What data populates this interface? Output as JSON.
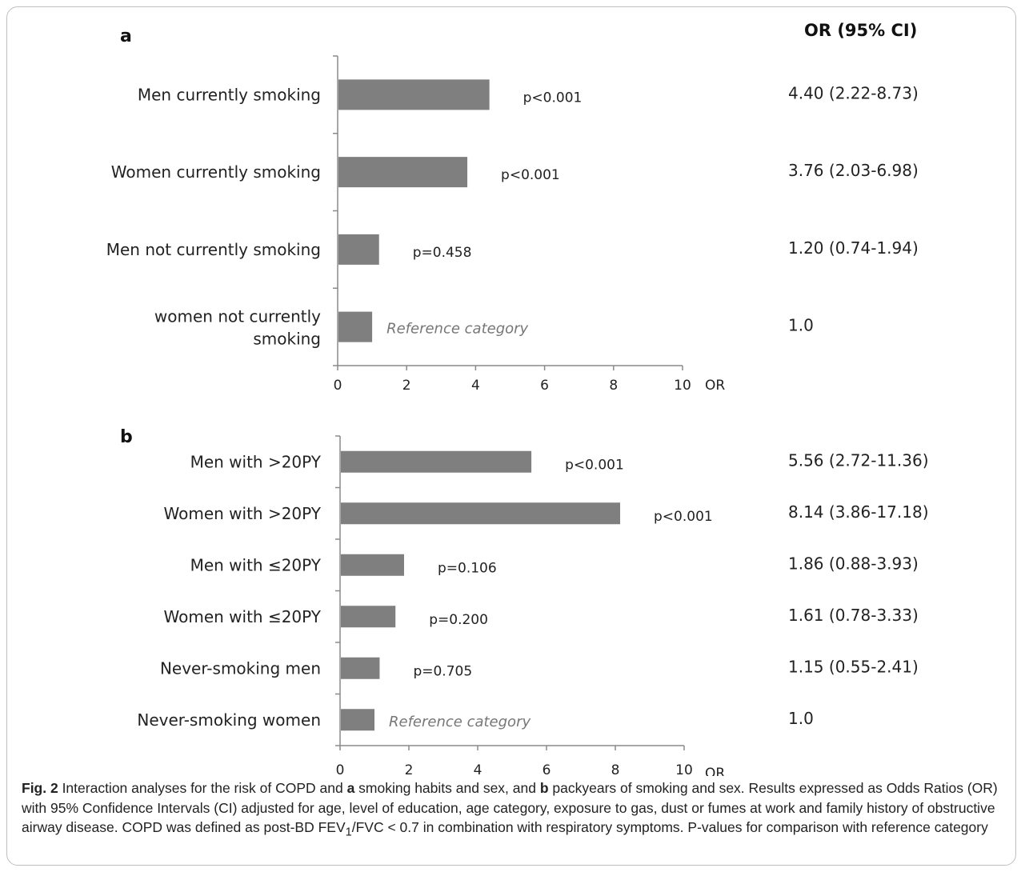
{
  "or_header": "OR (95% CI)",
  "chart_data": [
    {
      "type": "bar",
      "orientation": "horizontal",
      "panel": "a",
      "categories": [
        "Men currently smoking",
        "Women currently smoking",
        "Men not currently smoking",
        "women not currently smoking"
      ],
      "values": [
        4.4,
        3.76,
        1.2,
        1.0
      ],
      "pvalues": [
        "p<0.001",
        "p<0.001",
        "p=0.458",
        ""
      ],
      "bar_notes": [
        "",
        "",
        "",
        "Reference category"
      ],
      "or_ci": [
        "4.40 (2.22-8.73)",
        "3.76 (2.03-6.98)",
        "1.20 (0.74-1.94)",
        "1.0"
      ],
      "xlabel": "OR",
      "xlim": [
        0,
        10
      ],
      "xticks": [
        0,
        2,
        4,
        6,
        8,
        10
      ],
      "bar_color": "#7f7f7f"
    },
    {
      "type": "bar",
      "orientation": "horizontal",
      "panel": "b",
      "categories": [
        "Men with >20PY",
        "Women with >20PY",
        "Men with ≤20PY",
        "Women with ≤20PY",
        "Never-smoking men",
        "Never-smoking women"
      ],
      "values": [
        5.56,
        8.14,
        1.86,
        1.61,
        1.15,
        1.0
      ],
      "pvalues": [
        "p<0.001",
        "p<0.001",
        "p=0.106",
        "p=0.200",
        "p=0.705",
        ""
      ],
      "bar_notes": [
        "",
        "",
        "",
        "",
        "",
        "Reference category"
      ],
      "or_ci": [
        "5.56 (2.72-11.36)",
        "8.14 (3.86-17.18)",
        "1.86 (0.88-3.93)",
        "1.61 (0.78-3.33)",
        "1.15 (0.55-2.41)",
        "1.0"
      ],
      "xlabel": "OR",
      "xlim": [
        0,
        10
      ],
      "xticks": [
        0,
        2,
        4,
        6,
        8,
        10
      ],
      "bar_color": "#7f7f7f"
    }
  ],
  "caption": {
    "label": "Fig. 2",
    "p1": " Interaction analyses for the risk of COPD and ",
    "a": "a",
    "p2": " smoking habits and sex, and ",
    "b": "b",
    "p3": " packyears of smoking and sex. Results expressed as Odds Ratios (OR) with 95% Confidence Intervals (CI) adjusted for age, level of education, age category, exposure to gas, dust or fumes at work and family history of obstructive airway disease. COPD was defined as post-BD FEV",
    "sub": "1",
    "p4": "/FVC < 0.7 in combination with respiratory symptoms. P-values for comparison with reference category"
  }
}
